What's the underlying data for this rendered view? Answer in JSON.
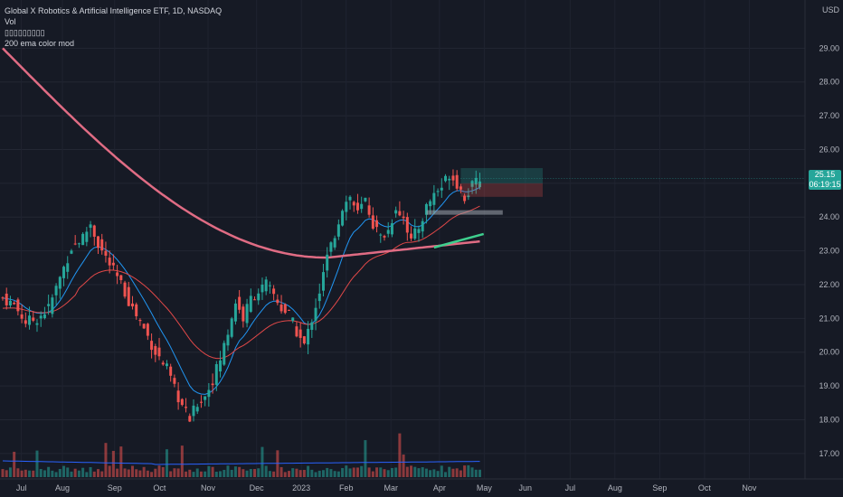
{
  "header": {
    "title": "Global X Robotics & Artificial Intelligence ETF, 1D, NASDAQ",
    "indicator_vol": "Vol",
    "indicator_placeholder": "▯▯▯▯▯▯▯▯▯",
    "indicator_ema": "200 ema color mod"
  },
  "price_axis": {
    "currency": "USD",
    "last_price": "25.15",
    "countdown": "06:19:15"
  },
  "colors": {
    "background": "#161a25",
    "up": "#26a69a",
    "down": "#ef5350",
    "ema200": "#e06c84",
    "ema_fast": "#2196f3",
    "ema_slow": "#e04848",
    "volume_ma": "#2962ff"
  },
  "chart_data": {
    "type": "candlestick",
    "ylim": [
      16.3,
      30.0
    ],
    "y_ticks": [
      "17.00",
      "18.00",
      "19.00",
      "20.00",
      "21.00",
      "22.00",
      "23.00",
      "24.00",
      "25.00",
      "26.00",
      "27.00",
      "28.00",
      "29.00"
    ],
    "x_ticks": [
      "Jul",
      "Aug",
      "Sep",
      "Oct",
      "Nov",
      "Dec",
      "2023",
      "Feb",
      "Mar",
      "Apr",
      "May",
      "Jun",
      "Jul",
      "Aug",
      "Sep",
      "Oct",
      "Nov"
    ],
    "close_path": [
      [
        0,
        21.6
      ],
      [
        3,
        21.4
      ],
      [
        6,
        20.9
      ],
      [
        9,
        21.0
      ],
      [
        12,
        21.3
      ],
      [
        15,
        22.2
      ],
      [
        18,
        23.1
      ],
      [
        21,
        23.4
      ],
      [
        23,
        23.8
      ],
      [
        25,
        23.2
      ],
      [
        28,
        22.6
      ],
      [
        31,
        22.0
      ],
      [
        34,
        21.3
      ],
      [
        37,
        20.7
      ],
      [
        40,
        20.0
      ],
      [
        43,
        19.5
      ],
      [
        45,
        18.9
      ],
      [
        47,
        18.4
      ],
      [
        49,
        18.0
      ],
      [
        51,
        18.5
      ],
      [
        53,
        18.7
      ],
      [
        55,
        19.2
      ],
      [
        57,
        19.8
      ],
      [
        59,
        20.6
      ],
      [
        61,
        21.5
      ],
      [
        63,
        21.0
      ],
      [
        65,
        21.6
      ],
      [
        67,
        21.8
      ],
      [
        69,
        22.0
      ],
      [
        71,
        21.7
      ],
      [
        73,
        21.3
      ],
      [
        75,
        21.1
      ],
      [
        77,
        20.6
      ],
      [
        79,
        20.2
      ],
      [
        81,
        21.0
      ],
      [
        83,
        21.8
      ],
      [
        85,
        22.8
      ],
      [
        87,
        23.5
      ],
      [
        89,
        24.3
      ],
      [
        91,
        24.6
      ],
      [
        93,
        24.1
      ],
      [
        95,
        24.5
      ],
      [
        97,
        23.8
      ],
      [
        99,
        23.4
      ],
      [
        101,
        23.6
      ],
      [
        103,
        24.3
      ],
      [
        105,
        24.0
      ],
      [
        107,
        23.3
      ],
      [
        109,
        23.7
      ],
      [
        111,
        24.3
      ],
      [
        113,
        24.7
      ],
      [
        115,
        24.9
      ],
      [
        117,
        25.3
      ],
      [
        119,
        25.0
      ],
      [
        121,
        24.6
      ],
      [
        123,
        24.9
      ],
      [
        125,
        25.15
      ]
    ],
    "volume_range": [
      0,
      1
    ]
  },
  "annotations": {
    "long_position_box": {
      "entry": 25.0,
      "target": 25.45,
      "stop": 24.6
    },
    "support_zone": {
      "low": 24.05,
      "high": 24.15
    },
    "ema200_projection_color": "#3ecf8e"
  }
}
